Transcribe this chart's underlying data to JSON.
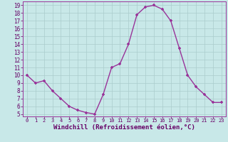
{
  "x": [
    0,
    1,
    2,
    3,
    4,
    5,
    6,
    7,
    8,
    9,
    10,
    11,
    12,
    13,
    14,
    15,
    16,
    17,
    18,
    19,
    20,
    21,
    22,
    23
  ],
  "y": [
    10.0,
    9.0,
    9.3,
    8.0,
    7.0,
    6.0,
    5.5,
    5.2,
    5.0,
    7.5,
    11.0,
    11.5,
    14.0,
    17.8,
    18.8,
    19.0,
    18.5,
    17.0,
    13.5,
    10.0,
    8.5,
    7.5,
    6.5,
    6.5
  ],
  "xlabel": "Windchill (Refroidissement éolien,°C)",
  "ylim_min": 4.7,
  "ylim_max": 19.5,
  "xlim_min": -0.5,
  "xlim_max": 23.5,
  "yticks": [
    5,
    6,
    7,
    8,
    9,
    10,
    11,
    12,
    13,
    14,
    15,
    16,
    17,
    18,
    19
  ],
  "xticks": [
    0,
    1,
    2,
    3,
    4,
    5,
    6,
    7,
    8,
    9,
    10,
    11,
    12,
    13,
    14,
    15,
    16,
    17,
    18,
    19,
    20,
    21,
    22,
    23
  ],
  "line_color": "#993399",
  "marker": "+",
  "bg_color": "#c8e8e8",
  "grid_color": "#aacccc",
  "label_color": "#660066",
  "tick_color": "#660066",
  "spine_color": "#993399",
  "font_family": "monospace",
  "xlabel_fontsize": 6.5,
  "ytick_fontsize": 5.5,
  "xtick_fontsize": 5.0,
  "marker_size": 3,
  "linewidth": 1.0
}
